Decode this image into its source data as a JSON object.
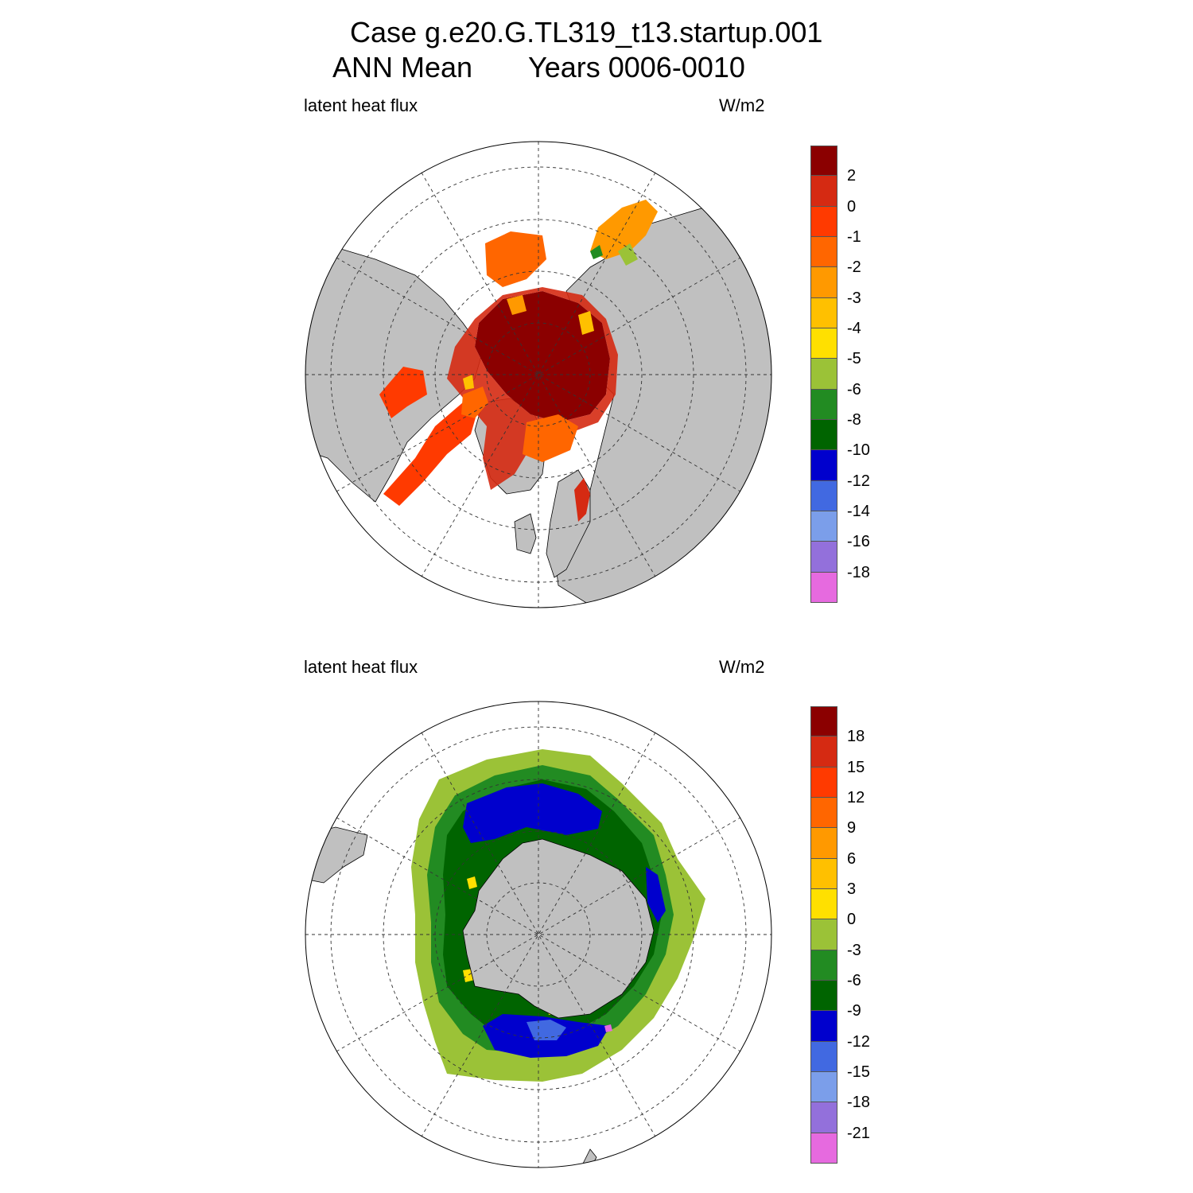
{
  "title": {
    "line1": "Case g.e20.G.TL319_t13.startup.001",
    "line2_left": "ANN Mean",
    "line2_right": "Years 0006-0010"
  },
  "colors": {
    "land": "#c0c0c0",
    "scale": [
      "#8b0000",
      "#d52a12",
      "#ff3a00",
      "#ff6600",
      "#ff9900",
      "#ffc000",
      "#ffe000",
      "#9bc237",
      "#228b22",
      "#006400",
      "#0000cd",
      "#4169e1",
      "#7b9eea",
      "#9370db",
      "#e66adf"
    ]
  },
  "panels": [
    {
      "id": "arctic",
      "left_label": "latent heat flux",
      "right_label": "W/m2",
      "hemisphere": "north",
      "colorbar_ticks": [
        "2",
        "0",
        "-1",
        "-2",
        "-3",
        "-4",
        "-5",
        "-6",
        "-8",
        "-10",
        "-12",
        "-14",
        "-16",
        "-18"
      ]
    },
    {
      "id": "antarctic",
      "left_label": "latent heat flux",
      "right_label": "W/m2",
      "hemisphere": "south",
      "colorbar_ticks": [
        "18",
        "15",
        "12",
        "9",
        "6",
        "3",
        "0",
        "-3",
        "-6",
        "-9",
        "-12",
        "-15",
        "-18",
        "-21"
      ]
    }
  ]
}
